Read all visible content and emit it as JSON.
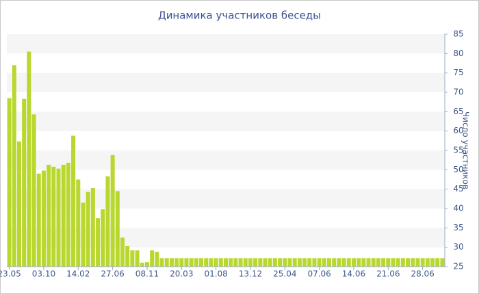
{
  "chart_data": {
    "type": "bar",
    "title": "Динамика участников беседы",
    "y_label": "Число участников",
    "categories": [
      "23.05",
      null,
      null,
      null,
      null,
      null,
      null,
      "03.10",
      null,
      null,
      null,
      null,
      null,
      null,
      "14.02",
      null,
      null,
      null,
      null,
      null,
      null,
      "27.06",
      null,
      null,
      null,
      null,
      null,
      null,
      "08.11",
      null,
      null,
      null,
      null,
      null,
      null,
      "20.03",
      null,
      null,
      null,
      null,
      null,
      null,
      "01.08",
      null,
      null,
      null,
      null,
      null,
      null,
      "13.12",
      null,
      null,
      null,
      null,
      null,
      null,
      "25.04",
      null,
      null,
      null,
      null,
      null,
      null,
      "07.06",
      null,
      null,
      null,
      null,
      null,
      null,
      "14.06",
      null,
      null,
      null,
      null,
      null,
      null,
      "21.06",
      null,
      null,
      null,
      null,
      null,
      null,
      "28.06",
      null,
      null,
      null,
      null
    ],
    "values": [
      68.5,
      77,
      57.3,
      68.3,
      80.5,
      64.3,
      49,
      49.8,
      51.3,
      50.8,
      50.3,
      51.3,
      51.8,
      58.8,
      47.5,
      41.5,
      44.3,
      45.3,
      37.5,
      39.8,
      48.3,
      53.8,
      44.5,
      32.5,
      30.3,
      29.2,
      29.2,
      26,
      26.2,
      29.2,
      28.8,
      27.2,
      27.2,
      27.2,
      27.2,
      27.2,
      27.2,
      27.2,
      27.2,
      27.2,
      27.2,
      27.2,
      27.2,
      27.2,
      27.2,
      27.2,
      27.2,
      27.2,
      27.2,
      27.2,
      27.2,
      27.2,
      27.2,
      27.2,
      27.2,
      27.2,
      27.2,
      27.2,
      27.2,
      27.2,
      27.2,
      27.2,
      27.2,
      27.2,
      27.2,
      27.2,
      27.2,
      27.2,
      27.2,
      27.2,
      27.2,
      27.2,
      27.2,
      27.2,
      27.2,
      27.2,
      27.2,
      27.2,
      27.2,
      27.2,
      27.2,
      27.2,
      27.2,
      27.2,
      27.2,
      27.2,
      27.2,
      27.2,
      27.2
    ],
    "color": "#b9d82f",
    "ylim": [
      25,
      85
    ],
    "yticks": [
      25,
      30,
      35,
      40,
      45,
      50,
      55,
      60,
      65,
      70,
      75,
      80,
      85
    ],
    "grid": true
  }
}
